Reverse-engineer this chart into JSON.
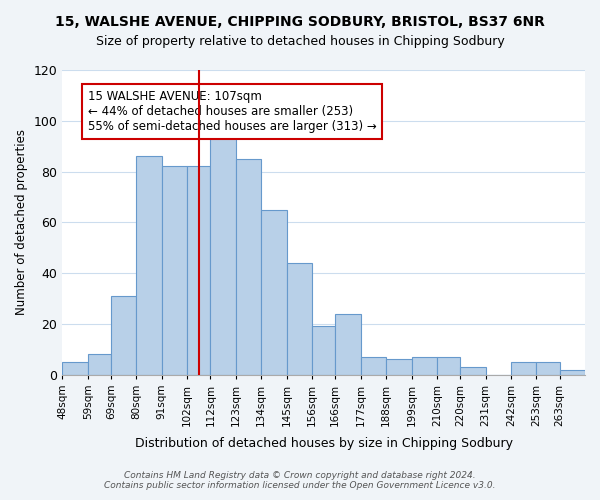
{
  "title1": "15, WALSHE AVENUE, CHIPPING SODBURY, BRISTOL, BS37 6NR",
  "title2": "Size of property relative to detached houses in Chipping Sodbury",
  "xlabel": "Distribution of detached houses by size in Chipping Sodbury",
  "ylabel": "Number of detached properties",
  "bin_labels": [
    "48sqm",
    "59sqm",
    "69sqm",
    "80sqm",
    "91sqm",
    "102sqm",
    "112sqm",
    "123sqm",
    "134sqm",
    "145sqm",
    "156sqm",
    "166sqm",
    "177sqm",
    "188sqm",
    "199sqm",
    "210sqm",
    "220sqm",
    "231sqm",
    "242sqm",
    "253sqm",
    "263sqm"
  ],
  "bin_edges": [
    48,
    59,
    69,
    80,
    91,
    102,
    112,
    123,
    134,
    145,
    156,
    166,
    177,
    188,
    199,
    210,
    220,
    231,
    242,
    253,
    263,
    274
  ],
  "bar_heights": [
    5,
    8,
    31,
    86,
    82,
    82,
    99,
    85,
    65,
    44,
    19,
    24,
    7,
    6,
    7,
    7,
    3,
    0,
    5,
    5,
    2
  ],
  "bar_color": "#b8d0e8",
  "bar_edge_color": "#6699cc",
  "property_value": 107,
  "annotation_title": "15 WALSHE AVENUE: 107sqm",
  "annotation_line1": "← 44% of detached houses are smaller (253)",
  "annotation_line2": "55% of semi-detached houses are larger (313) →",
  "annotation_box_color": "#ffffff",
  "annotation_box_edge": "#cc0000",
  "vline_color": "#cc0000",
  "ylim": [
    0,
    120
  ],
  "yticks": [
    0,
    20,
    40,
    60,
    80,
    100,
    120
  ],
  "footer1": "Contains HM Land Registry data © Crown copyright and database right 2024.",
  "footer2": "Contains public sector information licensed under the Open Government Licence v3.0.",
  "bg_color": "#f0f4f8",
  "plot_bg_color": "#ffffff"
}
